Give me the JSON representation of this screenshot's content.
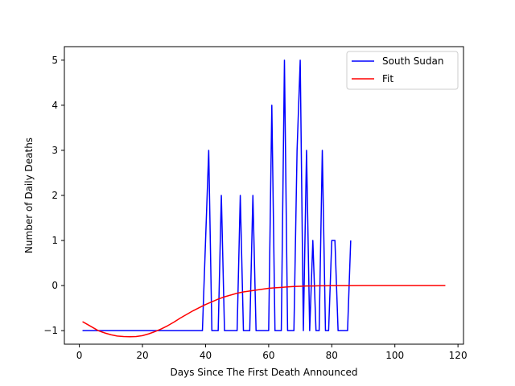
{
  "chart_data": {
    "type": "line",
    "xlabel": "Days Since The First Death Announced",
    "ylabel": "Number of Daily Deaths",
    "xlim": [
      -4.75,
      121.75
    ],
    "ylim": [
      -1.3,
      5.3
    ],
    "xticks": [
      0,
      20,
      40,
      60,
      80,
      100,
      120
    ],
    "yticks": [
      -1,
      0,
      1,
      2,
      3,
      4,
      5
    ],
    "legend_position": "top-right",
    "grid": false,
    "series": [
      {
        "name": "South Sudan",
        "color": "#0000ff",
        "x": [
          1,
          2,
          3,
          4,
          5,
          6,
          7,
          8,
          9,
          10,
          11,
          12,
          13,
          14,
          15,
          16,
          17,
          18,
          19,
          20,
          21,
          22,
          23,
          24,
          25,
          26,
          27,
          28,
          29,
          30,
          31,
          32,
          33,
          34,
          35,
          36,
          37,
          38,
          39,
          40,
          41,
          42,
          43,
          44,
          45,
          46,
          47,
          48,
          49,
          50,
          51,
          52,
          53,
          54,
          55,
          56,
          57,
          58,
          59,
          60,
          61,
          62,
          63,
          64,
          65,
          66,
          67,
          68,
          69,
          70,
          71,
          72,
          73,
          74,
          75,
          76,
          77,
          78,
          79,
          80,
          81,
          82,
          83,
          84,
          85,
          86
        ],
        "y": [
          -1,
          -1,
          -1,
          -1,
          -1,
          -1,
          -1,
          -1,
          -1,
          -1,
          -1,
          -1,
          -1,
          -1,
          -1,
          -1,
          -1,
          -1,
          -1,
          -1,
          -1,
          -1,
          -1,
          -1,
          -1,
          -1,
          -1,
          -1,
          -1,
          -1,
          -1,
          -1,
          -1,
          -1,
          -1,
          -1,
          -1,
          -1,
          -1,
          1,
          3,
          -1,
          -1,
          -1,
          2,
          -1,
          -1,
          -1,
          -1,
          -1,
          2,
          -1,
          -1,
          -1,
          2,
          -1,
          -1,
          -1,
          -1,
          -1,
          4,
          -1,
          -1,
          -1,
          5,
          -1,
          -1,
          -1,
          3,
          5,
          -1,
          3,
          -1,
          1,
          -1,
          -1,
          3,
          -1,
          -1,
          1,
          1,
          -1,
          -1,
          -1,
          -1,
          1
        ]
      },
      {
        "name": "Fit",
        "color": "#ff0000",
        "x": [
          1,
          2,
          4,
          6,
          8,
          10,
          12,
          14,
          16,
          18,
          20,
          22,
          24,
          26,
          28,
          30,
          32,
          34,
          36,
          38,
          40,
          42,
          44,
          46,
          48,
          50,
          52,
          54,
          56,
          58,
          60,
          62,
          64,
          66,
          68,
          70,
          72,
          74,
          76,
          78,
          80,
          85,
          90,
          95,
          100,
          105,
          110,
          116
        ],
        "y": [
          -0.8,
          -0.84,
          -0.92,
          -1.0,
          -1.05,
          -1.09,
          -1.12,
          -1.13,
          -1.135,
          -1.13,
          -1.11,
          -1.07,
          -1.02,
          -0.96,
          -0.89,
          -0.81,
          -0.72,
          -0.64,
          -0.56,
          -0.49,
          -0.42,
          -0.36,
          -0.3,
          -0.25,
          -0.21,
          -0.17,
          -0.14,
          -0.12,
          -0.1,
          -0.08,
          -0.06,
          -0.05,
          -0.04,
          -0.03,
          -0.02,
          -0.015,
          -0.01,
          -0.008,
          -0.005,
          -0.004,
          -0.003,
          -0.002,
          -0.001,
          0,
          0,
          0,
          0,
          0
        ]
      }
    ]
  }
}
